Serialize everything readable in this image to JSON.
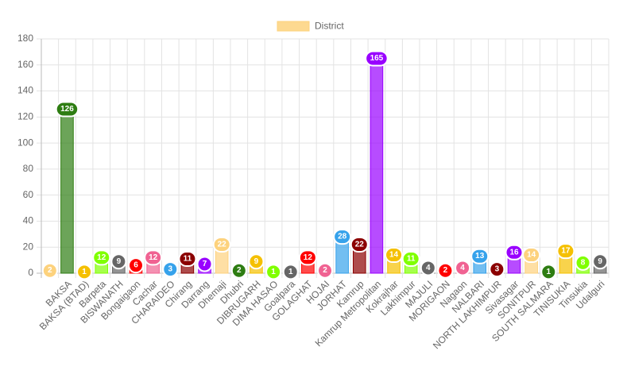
{
  "chart_data": {
    "type": "bar",
    "legend": "top",
    "grid": true,
    "ylim": [
      0,
      180
    ],
    "yticks": [
      0,
      20,
      40,
      60,
      80,
      100,
      120,
      140,
      160,
      180
    ],
    "categories": [
      null,
      "BAKSA",
      "BAKSA (BTAD)",
      "Barpeta",
      "BISWANATH",
      "Bongaigaon",
      "Cachar",
      "CHARAIDEO",
      "Chirang",
      "Darrang",
      "Dhemaji",
      "Dhubri",
      "DIBRUGARH",
      "DIMA HASAO",
      "Goalpara",
      "GOLAGHAT",
      "HOJAI",
      "JORHAT",
      "Kamrup",
      "Kamrup Metropolitan",
      "Kokrajhar",
      "Lakhimpur",
      "MAJULI",
      "MORIGAON",
      "Nagaon",
      "NALBARI",
      "NORTH LAKHIMPUR",
      "Sivasagar",
      "SONITPUR",
      "SOUTH SALMARA",
      "TINISUKIA",
      "Tinsukia",
      "Udalguri"
    ],
    "series": [
      {
        "name": "District",
        "color": "#fdd27d",
        "colors": [
          "#fdd27d",
          "#2e7d12",
          "#f5c000",
          "#80ff00",
          "#666666",
          "#ff0000",
          "#f06292",
          "#36a2eb",
          "#8b0000",
          "#9900ff",
          "#fdd27d",
          "#2e7d12",
          "#f5c000",
          "#80ff00",
          "#666666",
          "#ff0000",
          "#f06292",
          "#36a2eb",
          "#8b0000",
          "#9900ff",
          "#f5c000",
          "#80ff00",
          "#666666",
          "#ff0000",
          "#f06292",
          "#36a2eb",
          "#8b0000",
          "#9900ff",
          "#fdd27d",
          "#2e7d12",
          "#f5c000",
          "#80ff00",
          "#666666"
        ],
        "values": [
          2,
          126,
          1,
          12,
          9,
          6,
          12,
          3,
          11,
          7,
          22,
          2,
          9,
          1,
          1,
          12,
          2,
          28,
          22,
          165,
          14,
          11,
          4,
          2,
          4,
          13,
          3,
          16,
          14,
          1,
          17,
          8,
          9
        ]
      }
    ]
  }
}
